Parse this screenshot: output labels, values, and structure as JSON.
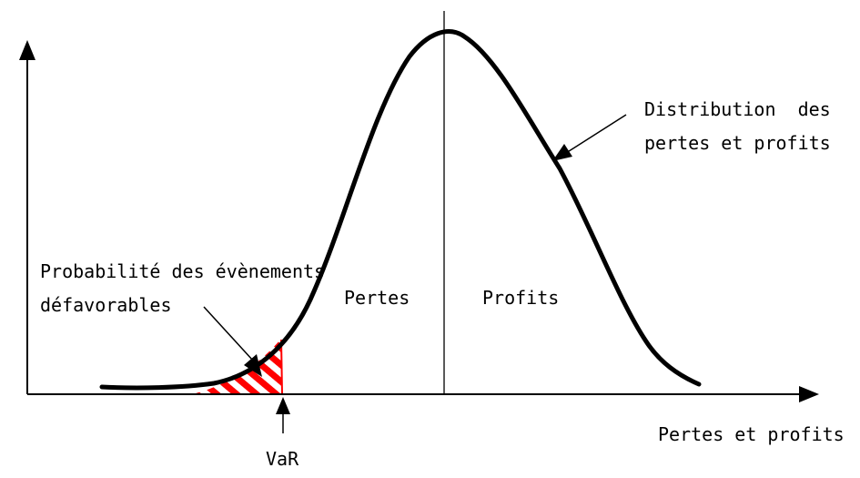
{
  "labels": {
    "curve_label_line1": "Distribution  des",
    "curve_label_line2": "pertes et profits",
    "probability_line1": "Probabilité des évènements",
    "probability_line2": "défavorables",
    "losses": "Pertes",
    "profits": "Profits",
    "x_axis": "Pertes et profits",
    "var": "VaR"
  },
  "colors": {
    "curve": "#000000",
    "axes": "#000000",
    "hatch": "#ff0000",
    "background": "#ffffff"
  }
}
